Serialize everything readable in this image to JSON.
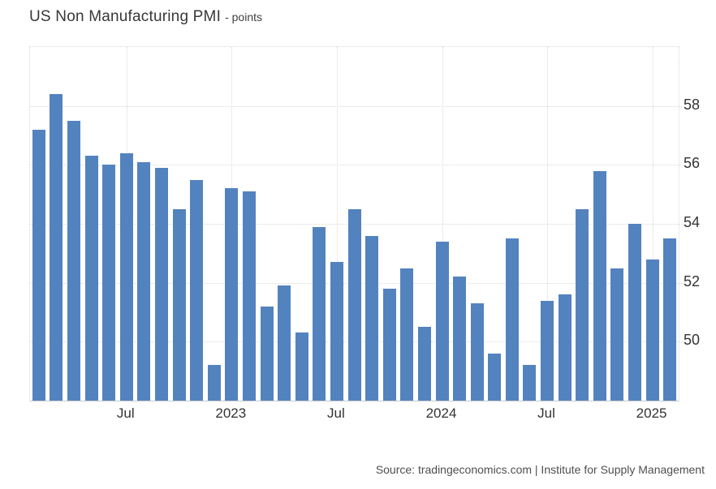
{
  "header": {
    "title": "US Non Manufacturing PMI",
    "subtitle": "- points"
  },
  "footer": {
    "source": "Source: tradingeconomics.com | Institute for Supply Management"
  },
  "chart_data": {
    "type": "bar",
    "title": "US Non Manufacturing PMI",
    "ylabel": "points",
    "xlabel": "",
    "ylim": [
      48,
      60
    ],
    "yticks": [
      58,
      56,
      54,
      52,
      50
    ],
    "grid": true,
    "legend_position": "none",
    "bar_color": "#5383BF",
    "categories": [
      "Feb 2022",
      "Mar 2022",
      "Apr 2022",
      "May 2022",
      "Jun 2022",
      "Jul 2022",
      "Aug 2022",
      "Sep 2022",
      "Oct 2022",
      "Nov 2022",
      "Dec 2022",
      "Jan 2023",
      "Feb 2023",
      "Mar 2023",
      "Apr 2023",
      "May 2023",
      "Jun 2023",
      "Jul 2023",
      "Aug 2023",
      "Sep 2023",
      "Oct 2023",
      "Nov 2023",
      "Dec 2023",
      "Jan 2024",
      "Feb 2024",
      "Mar 2024",
      "Apr 2024",
      "May 2024",
      "Jun 2024",
      "Jul 2024",
      "Aug 2024",
      "Sep 2024",
      "Oct 2024",
      "Nov 2024",
      "Dec 2024",
      "Jan 2025",
      "Feb 2025"
    ],
    "values": [
      57.2,
      58.4,
      57.5,
      56.3,
      56.0,
      56.4,
      56.1,
      55.9,
      54.5,
      55.5,
      49.2,
      55.2,
      55.1,
      51.2,
      51.9,
      50.3,
      53.9,
      52.7,
      54.5,
      53.6,
      51.8,
      52.5,
      50.5,
      53.4,
      52.2,
      51.3,
      49.6,
      53.5,
      49.2,
      51.4,
      51.6,
      54.5,
      55.8,
      52.5,
      54.0,
      52.8,
      53.5
    ],
    "xticks": [
      {
        "index": 5,
        "label": "Jul"
      },
      {
        "index": 11,
        "label": "2023"
      },
      {
        "index": 17,
        "label": "Jul"
      },
      {
        "index": 23,
        "label": "2024"
      },
      {
        "index": 29,
        "label": "Jul"
      },
      {
        "index": 35,
        "label": "2025"
      }
    ]
  }
}
